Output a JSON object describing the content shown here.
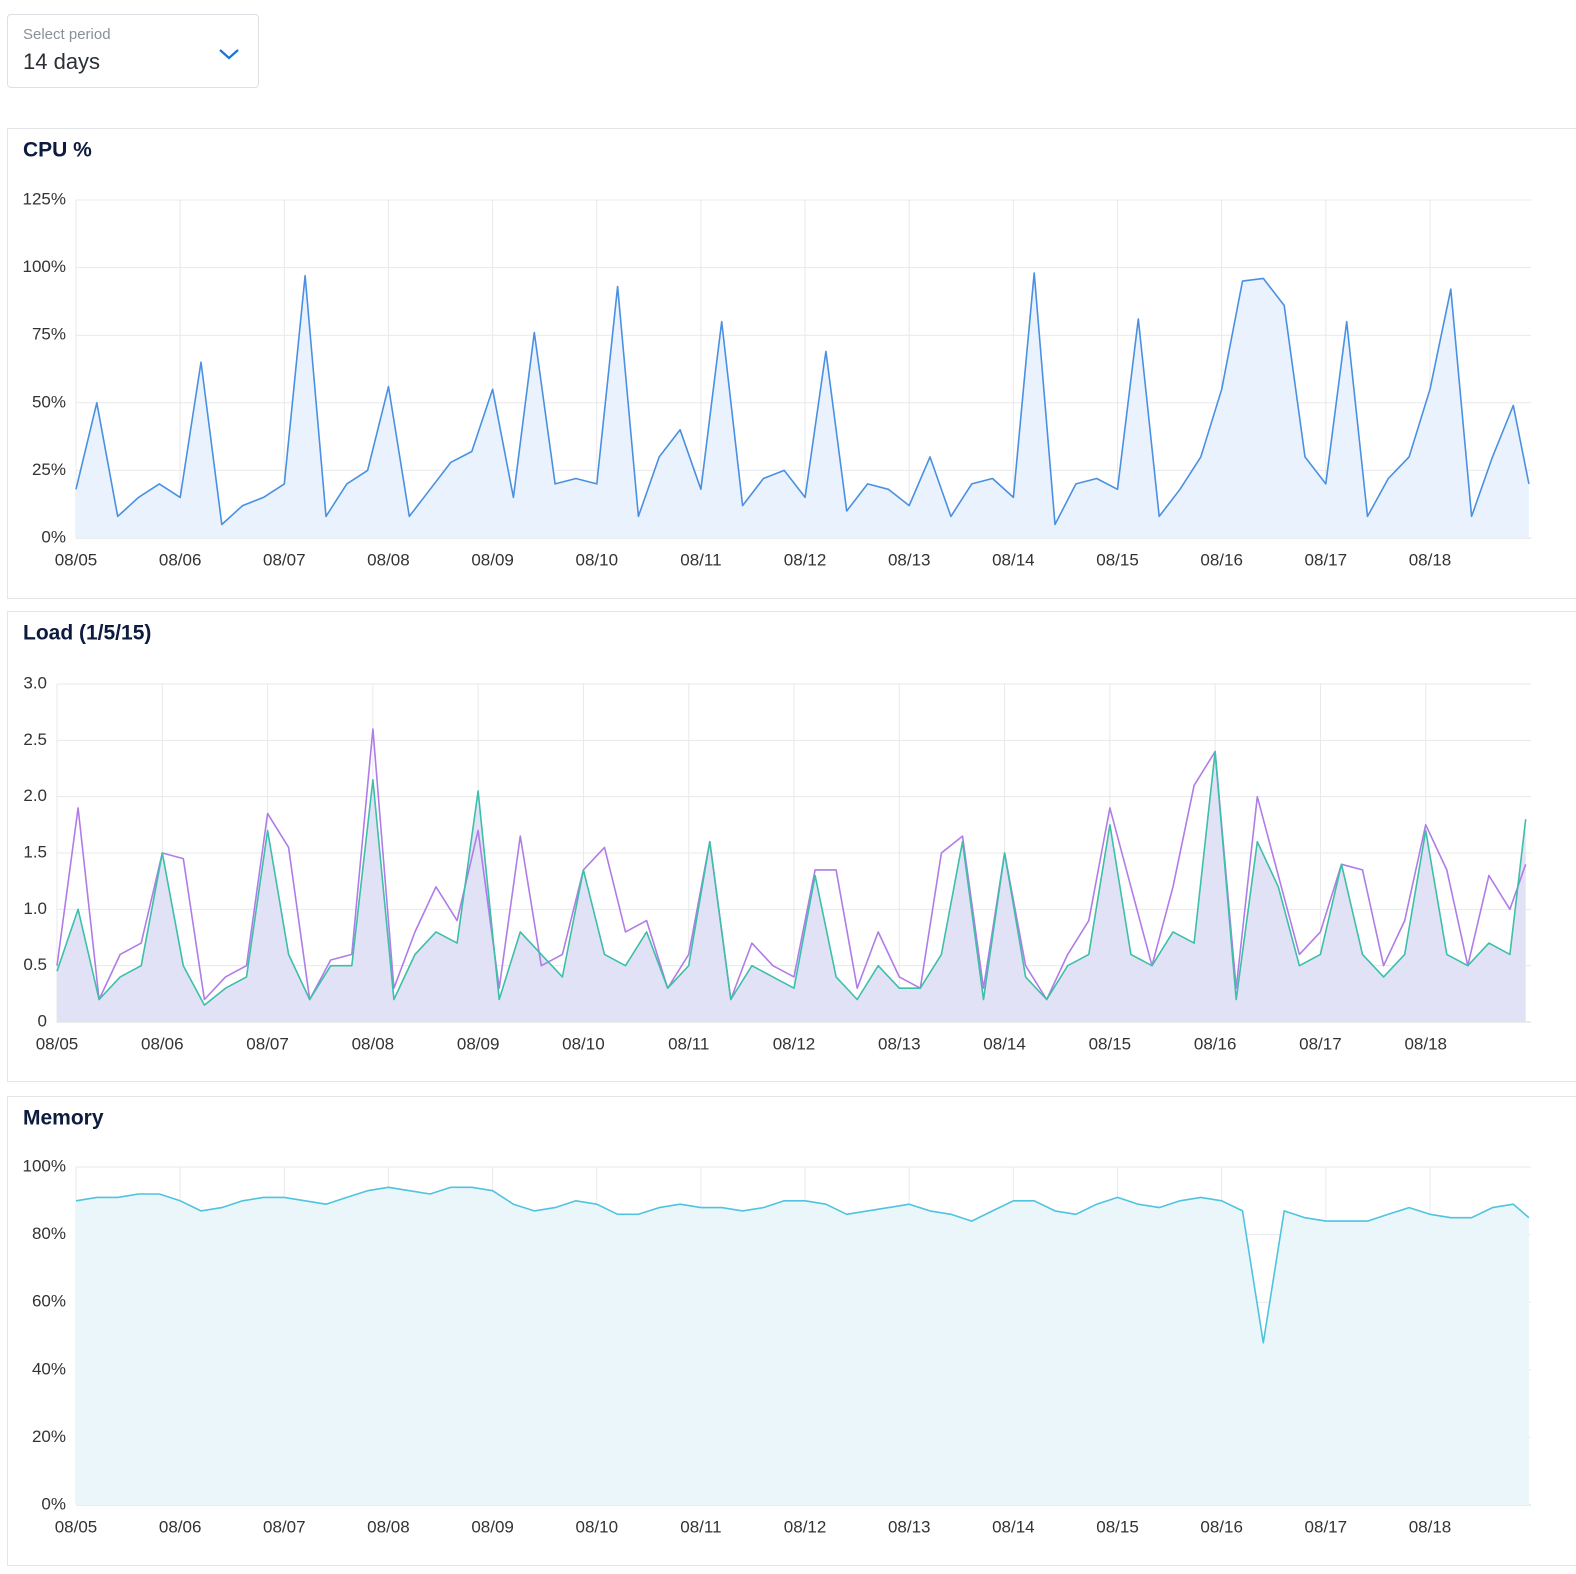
{
  "period_select": {
    "label": "Select period",
    "value": "14 days"
  },
  "chart_data": [
    {
      "type": "area",
      "title": "CPU %",
      "x": [
        0,
        0.2,
        0.4,
        0.6,
        0.8,
        1,
        1.2,
        1.4,
        1.6,
        1.8,
        2,
        2.2,
        2.4,
        2.6,
        2.8,
        3,
        3.2,
        3.4,
        3.6,
        3.8,
        4,
        4.2,
        4.4,
        4.6,
        4.8,
        5,
        5.2,
        5.4,
        5.6,
        5.8,
        6,
        6.2,
        6.4,
        6.6,
        6.8,
        7,
        7.2,
        7.4,
        7.6,
        7.8,
        8,
        8.2,
        8.4,
        8.6,
        8.8,
        9,
        9.2,
        9.4,
        9.6,
        9.8,
        10,
        10.2,
        10.4,
        10.6,
        10.8,
        11,
        11.2,
        11.4,
        11.6,
        11.8,
        12,
        12.2,
        12.4,
        12.6,
        12.8,
        13,
        13.2,
        13.4,
        13.6,
        13.8,
        13.95
      ],
      "series": [
        {
          "color": "#4a90e2",
          "fill": "#eaf3fd",
          "values": [
            18,
            50,
            8,
            15,
            20,
            15,
            65,
            5,
            12,
            15,
            20,
            97,
            8,
            20,
            25,
            56,
            8,
            18,
            28,
            32,
            55,
            15,
            76,
            20,
            22,
            20,
            93,
            8,
            30,
            40,
            18,
            80,
            12,
            22,
            25,
            15,
            69,
            10,
            20,
            18,
            12,
            30,
            8,
            20,
            22,
            15,
            98,
            5,
            20,
            22,
            18,
            81,
            8,
            18,
            30,
            55,
            95,
            96,
            86,
            30,
            20,
            80,
            8,
            22,
            30,
            55,
            92,
            8,
            30,
            49,
            20
          ]
        }
      ],
      "xlim": [
        0,
        13.97
      ],
      "xticks": [
        {
          "value": 0,
          "label": "08/05"
        },
        {
          "value": 1,
          "label": "08/06"
        },
        {
          "value": 2,
          "label": "08/07"
        },
        {
          "value": 3,
          "label": "08/08"
        },
        {
          "value": 4,
          "label": "08/09"
        },
        {
          "value": 5,
          "label": "08/10"
        },
        {
          "value": 6,
          "label": "08/11"
        },
        {
          "value": 7,
          "label": "08/12"
        },
        {
          "value": 8,
          "label": "08/13"
        },
        {
          "value": 9,
          "label": "08/14"
        },
        {
          "value": 10,
          "label": "08/15"
        },
        {
          "value": 11,
          "label": "08/16"
        },
        {
          "value": 12,
          "label": "08/17"
        },
        {
          "value": 13,
          "label": "08/18"
        }
      ],
      "ylim": [
        0,
        125
      ],
      "yticks": [
        {
          "value": 0,
          "label": "0%"
        },
        {
          "value": 25,
          "label": "25%"
        },
        {
          "value": 50,
          "label": "50%"
        },
        {
          "value": 75,
          "label": "75%"
        },
        {
          "value": 100,
          "label": "100%"
        },
        {
          "value": 125,
          "label": "125%"
        }
      ],
      "grid": true
    },
    {
      "type": "area",
      "title": "Load (1/5/15)",
      "x": [
        0,
        0.2,
        0.4,
        0.6,
        0.8,
        1,
        1.2,
        1.4,
        1.6,
        1.8,
        2,
        2.2,
        2.4,
        2.6,
        2.8,
        3,
        3.2,
        3.4,
        3.6,
        3.8,
        4,
        4.2,
        4.4,
        4.6,
        4.8,
        5,
        5.2,
        5.4,
        5.6,
        5.8,
        6,
        6.2,
        6.4,
        6.6,
        6.8,
        7,
        7.2,
        7.4,
        7.6,
        7.8,
        8,
        8.2,
        8.4,
        8.6,
        8.8,
        9,
        9.2,
        9.4,
        9.6,
        9.8,
        10,
        10.2,
        10.4,
        10.6,
        10.8,
        11,
        11.2,
        11.4,
        11.6,
        11.8,
        12,
        12.2,
        12.4,
        12.6,
        12.8,
        13,
        13.2,
        13.4,
        13.6,
        13.8,
        13.95
      ],
      "series": [
        {
          "color": "#b07ce8",
          "values": [
            0.5,
            1.9,
            0.2,
            0.6,
            0.7,
            1.5,
            1.45,
            0.2,
            0.4,
            0.5,
            1.85,
            1.55,
            0.2,
            0.55,
            0.6,
            2.6,
            0.3,
            0.8,
            1.2,
            0.9,
            1.7,
            0.3,
            1.65,
            0.5,
            0.6,
            1.35,
            1.55,
            0.8,
            0.9,
            0.3,
            0.6,
            1.6,
            0.2,
            0.7,
            0.5,
            0.4,
            1.35,
            1.35,
            0.3,
            0.8,
            0.4,
            0.3,
            1.5,
            1.65,
            0.3,
            1.5,
            0.5,
            0.2,
            0.6,
            0.9,
            1.9,
            1.2,
            0.5,
            1.2,
            2.1,
            2.4,
            0.3,
            2.0,
            1.3,
            0.6,
            0.8,
            1.4,
            1.35,
            0.5,
            0.9,
            1.75,
            1.35,
            0.5,
            1.3,
            1.0,
            1.4
          ]
        },
        {
          "color": "#3dbfa8",
          "fill": "#e1e2f6",
          "values": [
            0.45,
            1.0,
            0.2,
            0.4,
            0.5,
            1.5,
            0.5,
            0.15,
            0.3,
            0.4,
            1.7,
            0.6,
            0.2,
            0.5,
            0.5,
            2.15,
            0.2,
            0.6,
            0.8,
            0.7,
            2.05,
            0.2,
            0.8,
            0.6,
            0.4,
            1.35,
            0.6,
            0.5,
            0.8,
            0.3,
            0.5,
            1.6,
            0.2,
            0.5,
            0.4,
            0.3,
            1.3,
            0.4,
            0.2,
            0.5,
            0.3,
            0.3,
            0.6,
            1.6,
            0.2,
            1.5,
            0.4,
            0.2,
            0.5,
            0.6,
            1.75,
            0.6,
            0.5,
            0.8,
            0.7,
            2.4,
            0.2,
            1.6,
            1.2,
            0.5,
            0.6,
            1.4,
            0.6,
            0.4,
            0.6,
            1.7,
            0.6,
            0.5,
            0.7,
            0.6,
            1.8
          ]
        }
      ],
      "xlim": [
        0,
        14
      ],
      "xticks": [
        {
          "value": 0,
          "label": "08/05"
        },
        {
          "value": 1,
          "label": "08/06"
        },
        {
          "value": 2,
          "label": "08/07"
        },
        {
          "value": 3,
          "label": "08/08"
        },
        {
          "value": 4,
          "label": "08/09"
        },
        {
          "value": 5,
          "label": "08/10"
        },
        {
          "value": 6,
          "label": "08/11"
        },
        {
          "value": 7,
          "label": "08/12"
        },
        {
          "value": 8,
          "label": "08/13"
        },
        {
          "value": 9,
          "label": "08/14"
        },
        {
          "value": 10,
          "label": "08/15"
        },
        {
          "value": 11,
          "label": "08/16"
        },
        {
          "value": 12,
          "label": "08/17"
        },
        {
          "value": 13,
          "label": "08/18"
        }
      ],
      "ylim": [
        0,
        3
      ],
      "yticks": [
        0,
        0.5,
        {
          "value": 1,
          "label": "1.0"
        },
        1.5,
        {
          "value": 2,
          "label": "2.0"
        },
        2.5,
        {
          "value": 3,
          "label": "3.0"
        }
      ],
      "grid": true
    },
    {
      "type": "area",
      "title": "Memory",
      "x": [
        0,
        0.2,
        0.4,
        0.6,
        0.8,
        1,
        1.2,
        1.4,
        1.6,
        1.8,
        2,
        2.2,
        2.4,
        2.6,
        2.8,
        3,
        3.2,
        3.4,
        3.6,
        3.8,
        4,
        4.2,
        4.4,
        4.6,
        4.8,
        5,
        5.2,
        5.4,
        5.6,
        5.8,
        6,
        6.2,
        6.4,
        6.6,
        6.8,
        7,
        7.2,
        7.4,
        7.6,
        7.8,
        8,
        8.2,
        8.4,
        8.6,
        8.8,
        9,
        9.2,
        9.4,
        9.6,
        9.8,
        10,
        10.2,
        10.4,
        10.6,
        10.8,
        11,
        11.2,
        11.4,
        11.6,
        11.8,
        12,
        12.2,
        12.4,
        12.6,
        12.8,
        13,
        13.2,
        13.4,
        13.6,
        13.8,
        13.95
      ],
      "series": [
        {
          "color": "#4fc3e0",
          "fill": "#ebf6fb",
          "values": [
            90,
            91,
            91,
            92,
            92,
            90,
            87,
            88,
            90,
            91,
            91,
            90,
            89,
            91,
            93,
            94,
            93,
            92,
            94,
            94,
            93,
            89,
            87,
            88,
            90,
            89,
            86,
            86,
            88,
            89,
            88,
            88,
            87,
            88,
            90,
            90,
            89,
            86,
            87,
            88,
            89,
            87,
            86,
            84,
            87,
            90,
            90,
            87,
            86,
            89,
            91,
            89,
            88,
            90,
            91,
            90,
            87,
            48,
            87,
            85,
            84,
            84,
            84,
            86,
            88,
            86,
            85,
            85,
            88,
            89,
            85
          ]
        }
      ],
      "xlim": [
        0,
        13.97
      ],
      "xticks": [
        {
          "value": 0,
          "label": "08/05"
        },
        {
          "value": 1,
          "label": "08/06"
        },
        {
          "value": 2,
          "label": "08/07"
        },
        {
          "value": 3,
          "label": "08/08"
        },
        {
          "value": 4,
          "label": "08/09"
        },
        {
          "value": 5,
          "label": "08/10"
        },
        {
          "value": 6,
          "label": "08/11"
        },
        {
          "value": 7,
          "label": "08/12"
        },
        {
          "value": 8,
          "label": "08/13"
        },
        {
          "value": 9,
          "label": "08/14"
        },
        {
          "value": 10,
          "label": "08/15"
        },
        {
          "value": 11,
          "label": "08/16"
        },
        {
          "value": 12,
          "label": "08/17"
        },
        {
          "value": 13,
          "label": "08/18"
        }
      ],
      "ylim": [
        0,
        100
      ],
      "yticks": [
        {
          "value": 0,
          "label": "0%"
        },
        {
          "value": 20,
          "label": "20%"
        },
        {
          "value": 40,
          "label": "40%"
        },
        {
          "value": 60,
          "label": "60%"
        },
        {
          "value": 80,
          "label": "80%"
        },
        {
          "value": 100,
          "label": "100%"
        }
      ],
      "grid": true
    }
  ]
}
